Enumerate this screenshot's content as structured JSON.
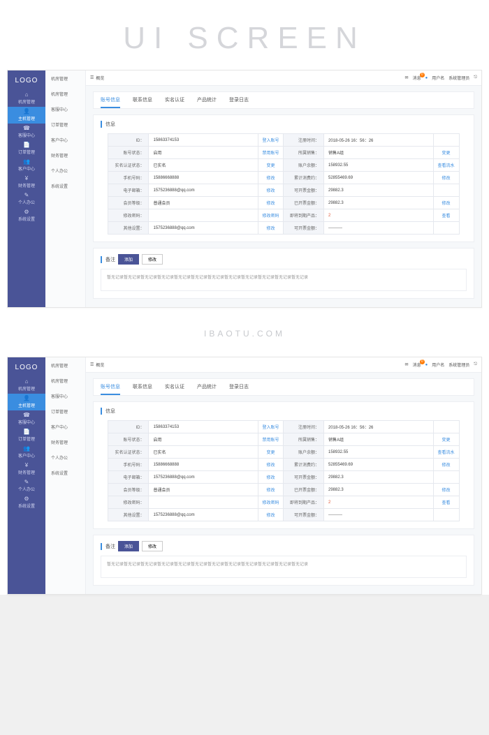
{
  "hero": "UI SCREEN",
  "watermark_text": "IBAOTU.COM",
  "logo": "LOGO",
  "sidebar": {
    "items": [
      {
        "icon": "⌂",
        "label": "机房管理"
      },
      {
        "icon": "👤",
        "label": "主机管理"
      },
      {
        "icon": "☎",
        "label": "客服中心"
      },
      {
        "icon": "📄",
        "label": "订单管理"
      },
      {
        "icon": "👥",
        "label": "客户中心"
      },
      {
        "icon": "¥",
        "label": "财务管理"
      },
      {
        "icon": "✎",
        "label": "个人办公"
      },
      {
        "icon": "⚙",
        "label": "系统设置"
      }
    ],
    "activeIndex": 1
  },
  "subnav": {
    "items": [
      "机房管理",
      "机房管理",
      "客服中心",
      "订单管理",
      "客户中心",
      "财务管理",
      "个人办公",
      "系统设置"
    ]
  },
  "topbar": {
    "breadcrumb_icon": "☰",
    "breadcrumb": "概览",
    "mail_icon": "✉",
    "msg_label": "消息",
    "msg_count": "0",
    "user_icon": "●",
    "username": "用户名",
    "role": "系统管理员",
    "logout_icon": "⎋"
  },
  "tabs": {
    "items": [
      "账号信息",
      "联系信息",
      "实名认证",
      "产品统计",
      "登录日志"
    ],
    "activeIndex": 0
  },
  "panel_info_title": "信息",
  "info": {
    "rows": [
      {
        "l1": "ID：",
        "v1": "15863374153",
        "a1": "登入账号",
        "l2": "注册时间：",
        "v2": "2018-05-26  16：56：26",
        "a2": ""
      },
      {
        "l1": "账号状态：",
        "v1": "启用",
        "a1": "禁用账号",
        "l2": "所属销售：",
        "v2": "销售A组",
        "a2": "变更"
      },
      {
        "l1": "实名认证状态：",
        "v1": "已实名",
        "a1": "变更",
        "l2": "账户余额：",
        "v2": "158932.55",
        "a2": "查看流水"
      },
      {
        "l1": "手机号码：",
        "v1": "15886668888",
        "a1": "修改",
        "l2": "累计消费约：",
        "v2": "52855469.69",
        "a2": "修改"
      },
      {
        "l1": "电子邮箱：",
        "v1": "1575236888@qq.com",
        "a1": "修改",
        "l2": "可开票金额：",
        "v2": "29882.3",
        "a2": ""
      },
      {
        "l1": "会员等级：",
        "v1": "普通会员",
        "a1": "修改",
        "l2": "已开票金额：",
        "v2": "29882.3",
        "a2": "修改"
      },
      {
        "l1": "修改密码：",
        "v1": "",
        "a1": "修改密码",
        "l2": "即将到期产品：",
        "v2": "2",
        "a2": "查看",
        "danger": true
      },
      {
        "l1": "其他设置：",
        "v1": "1575236888@qq.com",
        "a1": "修改",
        "l2": "可开票金额：",
        "v2": "----------",
        "a2": ""
      }
    ]
  },
  "notes": {
    "title": "备注",
    "add_btn": "添加",
    "edit_btn": "修改",
    "body": "暂无记录暂无记录暂无记录暂无记录暂无记录暂无记录暂无记录暂无记录暂无记录暂无记录暂无记录暂无记录"
  }
}
